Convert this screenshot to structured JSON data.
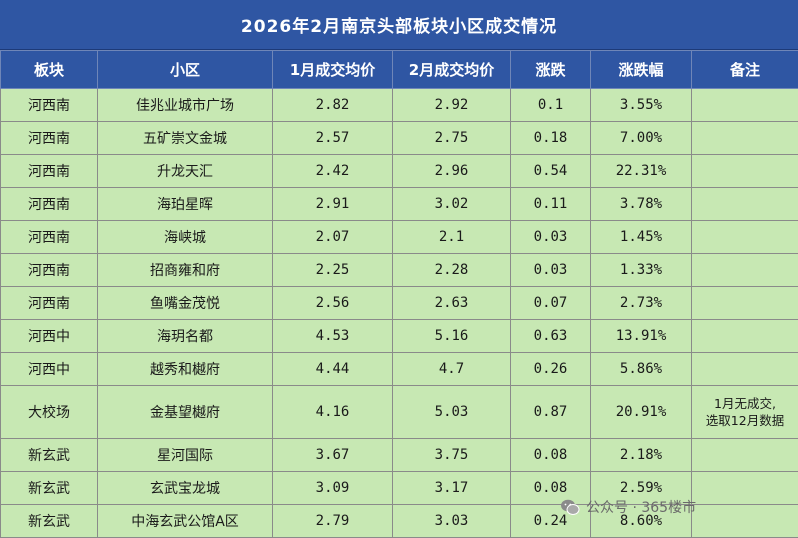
{
  "title": "2026年2月南京头部板块小区成交情况",
  "headers": [
    "板块",
    "小区",
    "1月成交均价",
    "2月成交均价",
    "涨跌",
    "涨跌幅",
    "备注"
  ],
  "rows": [
    {
      "district": "河西南",
      "community": "佳兆业城市广场",
      "jan": "2.82",
      "feb": "2.92",
      "change": "0.1",
      "pct": "3.55%",
      "note": []
    },
    {
      "district": "河西南",
      "community": "五矿崇文金城",
      "jan": "2.57",
      "feb": "2.75",
      "change": "0.18",
      "pct": "7.00%",
      "note": []
    },
    {
      "district": "河西南",
      "community": "升龙天汇",
      "jan": "2.42",
      "feb": "2.96",
      "change": "0.54",
      "pct": "22.31%",
      "note": []
    },
    {
      "district": "河西南",
      "community": "海珀星晖",
      "jan": "2.91",
      "feb": "3.02",
      "change": "0.11",
      "pct": "3.78%",
      "note": []
    },
    {
      "district": "河西南",
      "community": "海峡城",
      "jan": "2.07",
      "feb": "2.1",
      "change": "0.03",
      "pct": "1.45%",
      "note": []
    },
    {
      "district": "河西南",
      "community": "招商雍和府",
      "jan": "2.25",
      "feb": "2.28",
      "change": "0.03",
      "pct": "1.33%",
      "note": []
    },
    {
      "district": "河西南",
      "community": "鱼嘴金茂悦",
      "jan": "2.56",
      "feb": "2.63",
      "change": "0.07",
      "pct": "2.73%",
      "note": []
    },
    {
      "district": "河西中",
      "community": "海玥名都",
      "jan": "4.53",
      "feb": "5.16",
      "change": "0.63",
      "pct": "13.91%",
      "note": []
    },
    {
      "district": "河西中",
      "community": "越秀和樾府",
      "jan": "4.44",
      "feb": "4.7",
      "change": "0.26",
      "pct": "5.86%",
      "note": []
    },
    {
      "district": "大校场",
      "community": "金基望樾府",
      "jan": "4.16",
      "feb": "5.03",
      "change": "0.87",
      "pct": "20.91%",
      "note": [
        "1月无成交,",
        "选取12月数据"
      ]
    },
    {
      "district": "新玄武",
      "community": "星河国际",
      "jan": "3.67",
      "feb": "3.75",
      "change": "0.08",
      "pct": "2.18%",
      "note": []
    },
    {
      "district": "新玄武",
      "community": "玄武宝龙城",
      "jan": "3.09",
      "feb": "3.17",
      "change": "0.08",
      "pct": "2.59%",
      "note": []
    },
    {
      "district": "新玄武",
      "community": "中海玄武公馆A区",
      "jan": "2.79",
      "feb": "3.03",
      "change": "0.24",
      "pct": "8.60%",
      "note": []
    }
  ],
  "watermark": {
    "text": "公众号 · 365楼市",
    "icon": "wechat-icon"
  },
  "colors": {
    "header_bg": "#2f56a3",
    "cell_bg": "#c7e8b3",
    "grid": "#8a8a8a"
  }
}
